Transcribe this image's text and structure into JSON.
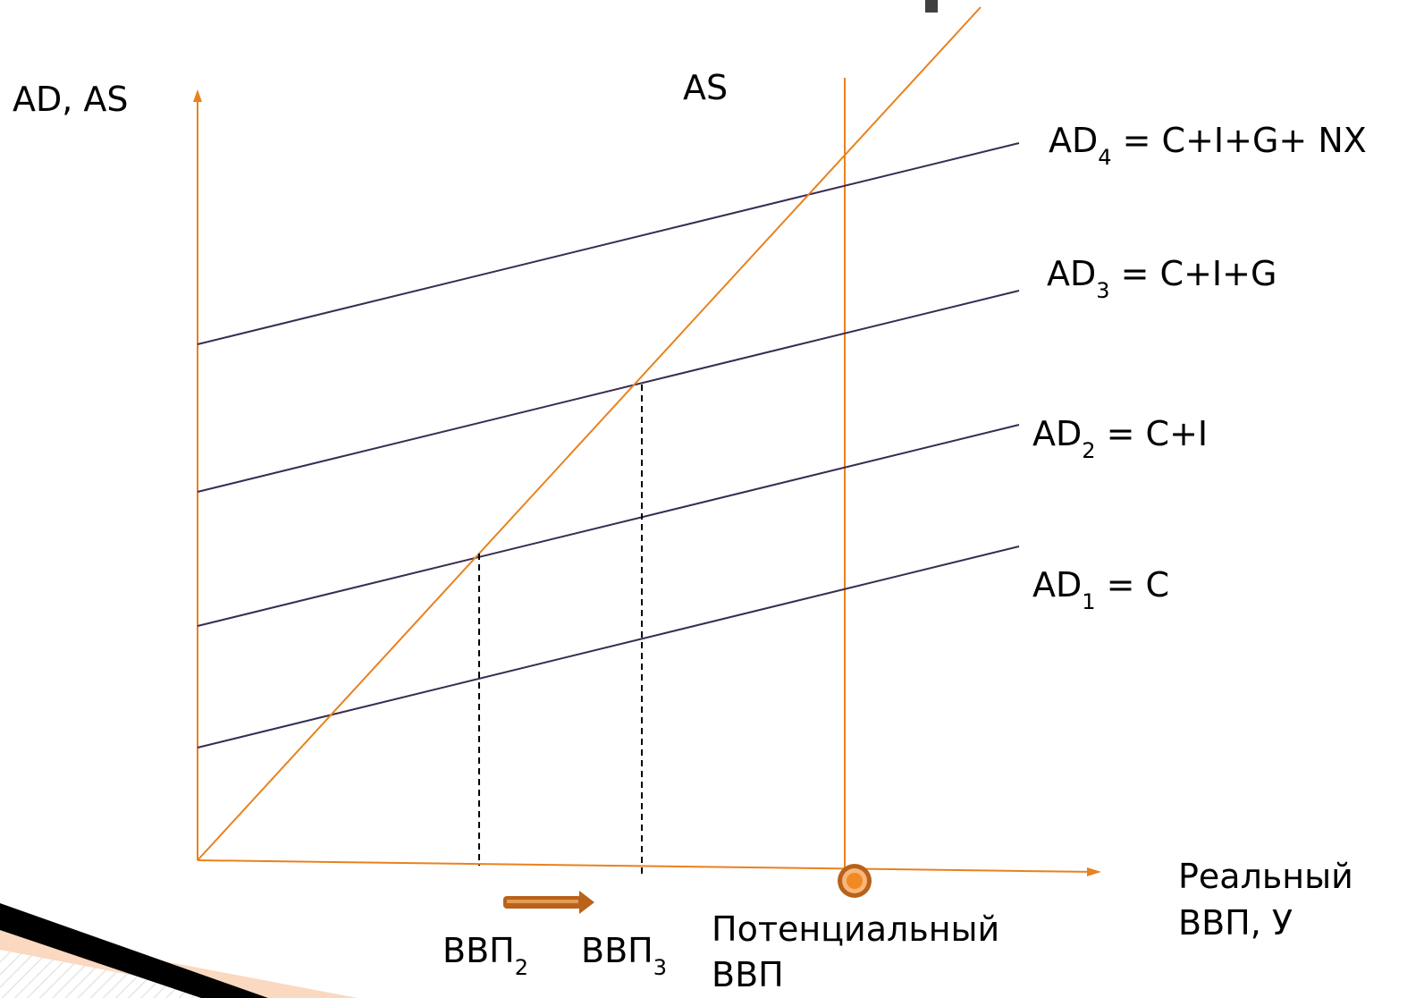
{
  "colors": {
    "axis": "#E8821E",
    "as_line": "#E8821E",
    "ad_line": "#3A2C52",
    "dashed": "#000000",
    "arrow": "#B8621A",
    "marker_outer": "#B8621A",
    "marker_inner": "#F08A24",
    "corner_dark": "#000000",
    "corner_peach": "#FAD9C0"
  },
  "labels": {
    "y_axis": "AD, AS",
    "as_curve": "AS",
    "x_axis_line1": "Реальный",
    "x_axis_line2": "ВВП, У",
    "potential_line1": "Потенциальный",
    "potential_line2": "ВВП"
  },
  "ad_curves": [
    {
      "main": "AD",
      "sub": "4",
      "rhs": " = C+I+G+ NX"
    },
    {
      "main": "AD",
      "sub": "3",
      "rhs": " = C+I+G"
    },
    {
      "main": "AD",
      "sub": "2",
      "rhs": " = C+I"
    },
    {
      "main": "AD",
      "sub": "1",
      "rhs": " = C"
    }
  ],
  "gdp_ticks": [
    {
      "main": "ВВП",
      "sub": "2"
    },
    {
      "main": "ВВП",
      "sub": "3"
    }
  ],
  "icons": {
    "shift_arrow": "right-arrow-icon",
    "potential_marker": "circle-marker-icon"
  }
}
